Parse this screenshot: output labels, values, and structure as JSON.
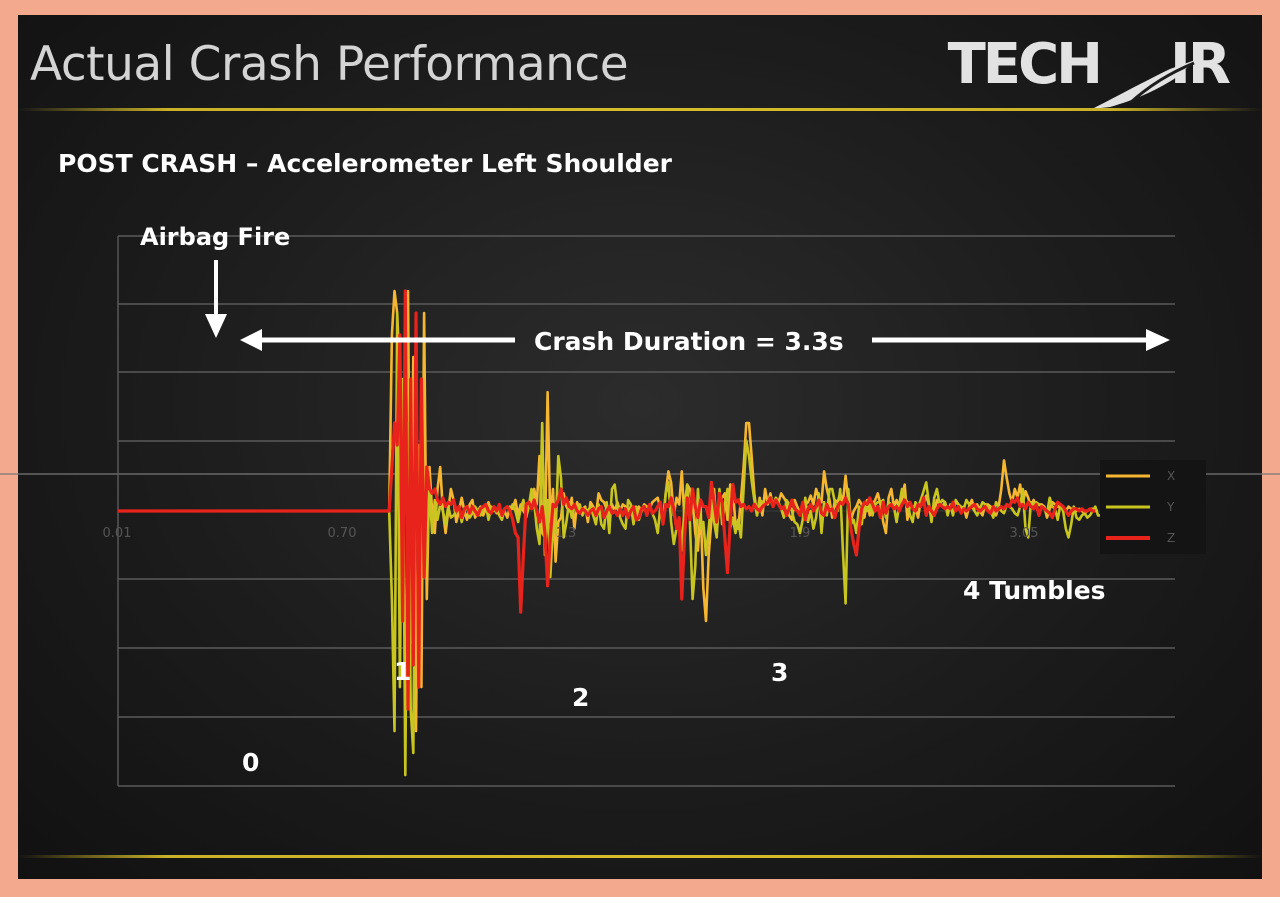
{
  "slide": {
    "title": "Actual Crash Performance",
    "logo_text": "TECH",
    "logo_text_2": "IR",
    "subtitle": "POST CRASH – Accelerometer Left Shoulder",
    "rule_color": "#d6bd2c"
  },
  "chart_data": {
    "type": "line",
    "x_tick_labels": [
      "0.01",
      "0.70",
      "1.3",
      "1.9",
      "3.05"
    ],
    "grid": true,
    "legend_position": "right",
    "series": [
      {
        "name": "X",
        "color": "#f5b731",
        "values": [
          0,
          0,
          0,
          0,
          0,
          0,
          0,
          0,
          0,
          0,
          0,
          0,
          0,
          0,
          0,
          0,
          0,
          0,
          0,
          0,
          0,
          0,
          0,
          0,
          0,
          0,
          0,
          0,
          0,
          0,
          0,
          0,
          0,
          0,
          0,
          0,
          0,
          0,
          0,
          0,
          0,
          0,
          0,
          0,
          0,
          0,
          0,
          0,
          0,
          0,
          0,
          0,
          0,
          0,
          0,
          0,
          0,
          0,
          0,
          0,
          0,
          0,
          0,
          0,
          0,
          0,
          0,
          0,
          0,
          0,
          0,
          0,
          0,
          0,
          0,
          0,
          0,
          0,
          0,
          0,
          0,
          0,
          0,
          0,
          0,
          0,
          0,
          0,
          0,
          0,
          0,
          0,
          0,
          0,
          0,
          0,
          0,
          0,
          0,
          0,
          0,
          0,
          8,
          10,
          9,
          6,
          3,
          5,
          10,
          -6,
          7,
          -10,
          3,
          -8,
          9,
          -4,
          2,
          0,
          -1,
          1,
          2,
          0,
          -1,
          0,
          1,
          0.5,
          -0.5,
          0,
          0.6,
          0,
          -0.4,
          0.3,
          0.5,
          -0.3,
          0,
          0.2,
          -0.2,
          0.1,
          0.4,
          0,
          0.2,
          -0.1,
          0.3,
          -0.2,
          0,
          -0.3,
          0.2,
          0.1,
          0.5,
          -0.2,
          0.3,
          0,
          -0.2,
          0.3,
          0.4,
          1,
          0.3,
          2.5,
          -1,
          -1.2,
          5.4,
          -0.5,
          1,
          -2.3,
          -0.5,
          -0.3,
          0.8,
          0.2,
          0,
          0.6,
          -0.8,
          0.4,
          0,
          0.1,
          0.2,
          -0.5,
          0.4,
          0.2,
          -0.2,
          0.8,
          0.5,
          0.4,
          0.1,
          -0.1,
          0.3,
          0,
          0.4,
          0,
          0.3,
          0.2,
          0,
          0.2,
          0.2,
          -0.3,
          0.2,
          0,
          0.3,
          0.2,
          0.1,
          0.4,
          0.5,
          0.6,
          0.1,
          -0.4,
          0.8,
          1.8,
          1.3,
          -0.2,
          0.6,
          0.3,
          1.8,
          -0.4,
          1.2,
          1,
          0.4,
          -1,
          -1.8,
          0.2,
          -3.5,
          -5,
          -2,
          -0.4,
          1,
          -1,
          0.5,
          0.6,
          0.8,
          -0.4,
          1.2,
          1,
          -0.6,
          -0.8,
          0.5,
          2,
          4,
          4,
          2.5,
          0.8,
          -0.2,
          0.6,
          -0.2,
          1,
          0.3,
          0.8,
          0.2,
          0.6,
          0.4,
          0.8,
          0.6,
          0.4,
          -0.2,
          -0.4,
          0.5,
          0.2,
          -0.1,
          0.1,
          0.3,
          0.4,
          0.7,
          0.3,
          1,
          0.6,
          0.4,
          1.8,
          1,
          0.5,
          -0.3,
          0.5,
          0.4,
          0.8,
          0.4,
          1.6,
          0.4,
          -0.4,
          0,
          0.2,
          0.5,
          0.3,
          -0.3,
          0.5,
          -0.2,
          0.3,
          0.5,
          0.8,
          0.3,
          -0.5,
          -1,
          0.6,
          1,
          0.2,
          0.5,
          0.1,
          0.6,
          1.2,
          -0.4,
          0.3,
          0.2,
          0.1,
          -0.3,
          0.5,
          0.3,
          0.7,
          0.3,
          -0.2,
          0,
          0.5,
          0.3,
          0.2,
          0.4,
          0,
          0.2,
          0.3,
          0.4,
          0.3,
          0.1,
          0.2,
          -0.3,
          0.2,
          0.5,
          0.1,
          0.3,
          0,
          -0.2,
          0.3,
          0.3,
          0.2,
          0,
          -0.2,
          0.2,
          1,
          2.3,
          1.5,
          0.8,
          0.4,
          1,
          0.6,
          1.2,
          0.4,
          0.9,
          0.6,
          0.2,
          0.5,
          0.2,
          0.3,
          0.3,
          0.2,
          -0.3,
          0.1,
          0.4,
          0.3,
          0.2,
          0.3,
          0.2,
          0,
          0.2,
          0.1,
          0,
          0,
          0.1,
          0,
          -0.1,
          0,
          0.1,
          0.1,
          0,
          0
        ]
      },
      {
        "name": "Y",
        "color": "#c8c520",
        "values": [
          0,
          0,
          0,
          0,
          0,
          0,
          0,
          0,
          0,
          0,
          0,
          0,
          0,
          0,
          0,
          0,
          0,
          0,
          0,
          0,
          0,
          0,
          0,
          0,
          0,
          0,
          0,
          0,
          0,
          0,
          0,
          0,
          0,
          0,
          0,
          0,
          0,
          0,
          0,
          0,
          0,
          0,
          0,
          0,
          0,
          0,
          0,
          0,
          0,
          0,
          0,
          0,
          0,
          0,
          0,
          0,
          0,
          0,
          0,
          0,
          0,
          0,
          0,
          0,
          0,
          0,
          0,
          0,
          0,
          0,
          0,
          0,
          0,
          0,
          0,
          0,
          0,
          0,
          0,
          0,
          0,
          0,
          0,
          0,
          0,
          0,
          0,
          0,
          0,
          0,
          0,
          0,
          0,
          0,
          0,
          0,
          0,
          0,
          0,
          0,
          0,
          0,
          -4,
          -10,
          9,
          -8,
          6,
          -12,
          4,
          -9,
          -11,
          5,
          -6,
          3,
          -3,
          -2,
          1,
          -1,
          0.5,
          -0.4,
          0.3,
          0,
          -0.6,
          0.2,
          -0.3,
          -0.2,
          0,
          0.2,
          -0.5,
          0,
          0.2,
          -0.3,
          -0.1,
          0.2,
          0,
          -0.2,
          0.1,
          0.3,
          -0.4,
          0.2,
          0,
          0.1,
          -0.2,
          -0.4,
          0.1,
          0.2,
          0,
          0.3,
          0,
          -0.5,
          0.1,
          0.5,
          -0.3,
          0.2,
          1,
          0.4,
          -0.8,
          -1.5,
          4,
          -2,
          0.5,
          -3,
          -0.6,
          -1,
          2.5,
          1.5,
          -1.2,
          -0.5,
          0.4,
          -0.3,
          0.2,
          0,
          0.3,
          -0.2,
          0.1,
          0,
          0.2,
          -0.2,
          -0.6,
          0.3,
          -0.6,
          -0.8,
          0.4,
          -1,
          1,
          1.2,
          0.2,
          -0.3,
          -0.6,
          -0.8,
          0.5,
          0.3,
          -0.6,
          0.2,
          -0.4,
          0,
          0.2,
          -0.2,
          0.3,
          -0.1,
          -0.4,
          -1,
          0.2,
          -0.6,
          0.8,
          1.3,
          -0.5,
          -1.5,
          -0.8,
          -0.3,
          -1.8,
          0.2,
          1.2,
          -0.5,
          -4,
          -2.5,
          1,
          -0.8,
          -0.5,
          -2,
          -0.8,
          0.5,
          -0.5,
          -1.2,
          1,
          -0.6,
          0.3,
          1,
          -0.8,
          -0.3,
          -1,
          -0.4,
          -1.2,
          1,
          3.2,
          2.5,
          1.4,
          0.5,
          -0.2,
          0.5,
          0.4,
          0.3,
          0.4,
          0.5,
          0.2,
          0.6,
          0.4,
          0.1,
          -0.3,
          0.5,
          0.3,
          0,
          -0.5,
          -0.6,
          -1,
          -0.4,
          0.6,
          -0.5,
          0,
          -0.8,
          -0.3,
          0.8,
          -1,
          0.4,
          -0.2,
          1,
          1,
          0.4,
          0,
          1,
          -1.8,
          -4.2,
          1,
          -0.6,
          -0.4,
          -1,
          0.2,
          -0.6,
          0.4,
          0,
          0.3,
          -0.2,
          0.3,
          0.4,
          0.4,
          0.5,
          -0.3,
          0.4,
          0.3,
          0.2,
          -0.5,
          0.3,
          1,
          0.6,
          0.4,
          -0.2,
          -0.5,
          0.4,
          0.2,
          0.5,
          0.9,
          1.3,
          0.4,
          -0.5,
          0.6,
          1,
          0.3,
          0.5,
          0.4,
          -0.2,
          0.3,
          -0.2,
          0.5,
          0.3,
          0.2,
          0.1,
          0.5,
          0.3,
          0.2,
          0,
          -0.2,
          0.1,
          0.4,
          0.3,
          0.2,
          0,
          -0.3,
          0.4,
          0.2,
          0,
          -0.1,
          0.3,
          0.2,
          0.1,
          -0.1,
          -0.2,
          0.2,
          1,
          -0.8,
          -1.2,
          0.4,
          0.3,
          0.4,
          0.3,
          0.2,
          0.1,
          -0.1,
          0.6,
          0.2,
          0.1,
          -0.4,
          0.3,
          0,
          -0.8,
          -1.2,
          -0.6,
          0.2,
          -0.3,
          -0.4,
          -0.2,
          -0.1,
          -0.3,
          -0.2,
          0,
          0.2,
          -0.2,
          -0.2,
          -0.3,
          -0.2,
          -0.1,
          -0.1,
          0,
          0,
          0
        ]
      },
      {
        "name": "Z",
        "color": "#e8231b",
        "values": [
          0,
          0,
          0,
          0,
          0,
          0,
          0,
          0,
          0,
          0,
          0,
          0,
          0,
          0,
          0,
          0,
          0,
          0,
          0,
          0,
          0,
          0,
          0,
          0,
          0,
          0,
          0,
          0,
          0,
          0,
          0,
          0,
          0,
          0,
          0,
          0,
          0,
          0,
          0,
          0,
          0,
          0,
          0,
          0,
          0,
          0,
          0,
          0,
          0,
          0,
          0,
          0,
          0,
          0,
          0,
          0,
          0,
          0,
          0,
          0,
          0,
          0,
          0,
          0,
          0,
          0,
          0,
          0,
          0,
          0,
          0,
          0,
          0,
          0,
          0,
          0,
          0,
          0,
          0,
          0,
          0,
          0,
          0,
          0,
          0,
          0,
          0,
          0,
          0,
          0,
          0,
          0,
          0,
          0,
          0,
          0,
          0,
          0,
          0,
          0,
          0,
          0,
          2,
          4,
          3,
          8,
          -5,
          10,
          -9,
          6,
          -7,
          9,
          -8,
          6,
          -3,
          2,
          1,
          0.8,
          1,
          0.5,
          0.3,
          0.6,
          0.2,
          0.4,
          0.3,
          0.5,
          0,
          0.2,
          -0.3,
          0.1,
          0.2,
          -0.1,
          0.2,
          0,
          -0.2,
          0.1,
          0.2,
          0.3,
          0,
          -0.1,
          0.2,
          0,
          0.3,
          -0.2,
          0.1,
          0.2,
          0,
          -0.4,
          -1,
          -1.2,
          -4.6,
          -2,
          0.3,
          0.4,
          0.1,
          0.5,
          0,
          -0.5,
          0.2,
          -1,
          -3.4,
          -1.2,
          0.3,
          0.2,
          0.5,
          1,
          0.3,
          0.6,
          0.2,
          0.1,
          0.3,
          0,
          -0.1,
          0.1,
          0,
          -0.2,
          0,
          0.1,
          -0.2,
          0.1,
          0.2,
          -0.3,
          0,
          0.2,
          -0.1,
          0,
          -0.2,
          0.1,
          -0.2,
          0.1,
          -0.3,
          0,
          0.2,
          -0.4,
          -0.3,
          0.1,
          0.2,
          -0.2,
          0.3,
          -0.1,
          0,
          0.2,
          0.4,
          -0.6,
          0.3,
          0.2,
          0.6,
          0.1,
          -0.8,
          -0.3,
          -4,
          -1.2,
          0.6,
          -0.4,
          1,
          0.2,
          -0.3,
          0.5,
          0.2,
          0.2,
          -0.3,
          1.3,
          0.4,
          -0.5,
          0.8,
          0.4,
          -1.2,
          -2.8,
          -0.5,
          1.2,
          0.4,
          0.5,
          0.2,
          0.3,
          0.1,
          0.2,
          0,
          0.3,
          0.1,
          0,
          0.2,
          0.3,
          0.4,
          0.6,
          0.2,
          0.5,
          0.3,
          0.1,
          0.2,
          -0.2,
          0.1,
          0.5,
          0.1,
          0,
          -0.2,
          0.4,
          -0.4,
          0.1,
          0.3,
          0,
          0.2,
          0.5,
          -0.1,
          -0.2,
          0.3,
          0,
          0.1,
          -0.3,
          0.2,
          0.4,
          0.3,
          0.6,
          0.3,
          -0.8,
          -1.5,
          -2,
          -0.8,
          0.1,
          0.4,
          0.3,
          0.6,
          0.3,
          0,
          0.2,
          -0.3,
          0.4,
          -0.1,
          0.2,
          0.3,
          0.1,
          0.2,
          0,
          0.3,
          0.5,
          0.2,
          0.4,
          0.1,
          0,
          0.3,
          0.2,
          0.6,
          -0.2,
          0.2,
          0,
          -0.2,
          0.1,
          0.3,
          0.2,
          0.1,
          0.2,
          0.1,
          0.4,
          0,
          0.2,
          -0.1,
          0.1,
          0,
          0.1,
          0.2,
          0.3,
          0.1,
          0,
          0.1,
          0.2,
          0,
          -0.1,
          0.2,
          0,
          0.1,
          0.2,
          0.1,
          0.3,
          0.2,
          0.5,
          0.4,
          0.6,
          0.2,
          0.3,
          0.1,
          0.4,
          0.2,
          0.1,
          0.3,
          -0.2,
          0.2,
          0.1,
          0,
          -0.1,
          -0.3,
          0.1,
          0.4,
          0.3,
          0.2,
          0,
          -0.2,
          0,
          0.1,
          0.1,
          0,
          0.1,
          0,
          0,
          0.1,
          0,
          0
        ]
      }
    ]
  },
  "annotations": {
    "airbag": "Airbag Fire",
    "duration": "Crash Duration = 3.3s",
    "tumbles": "4 Tumbles",
    "t0": "0",
    "t1": "1",
    "t2": "2",
    "t3": "3"
  }
}
